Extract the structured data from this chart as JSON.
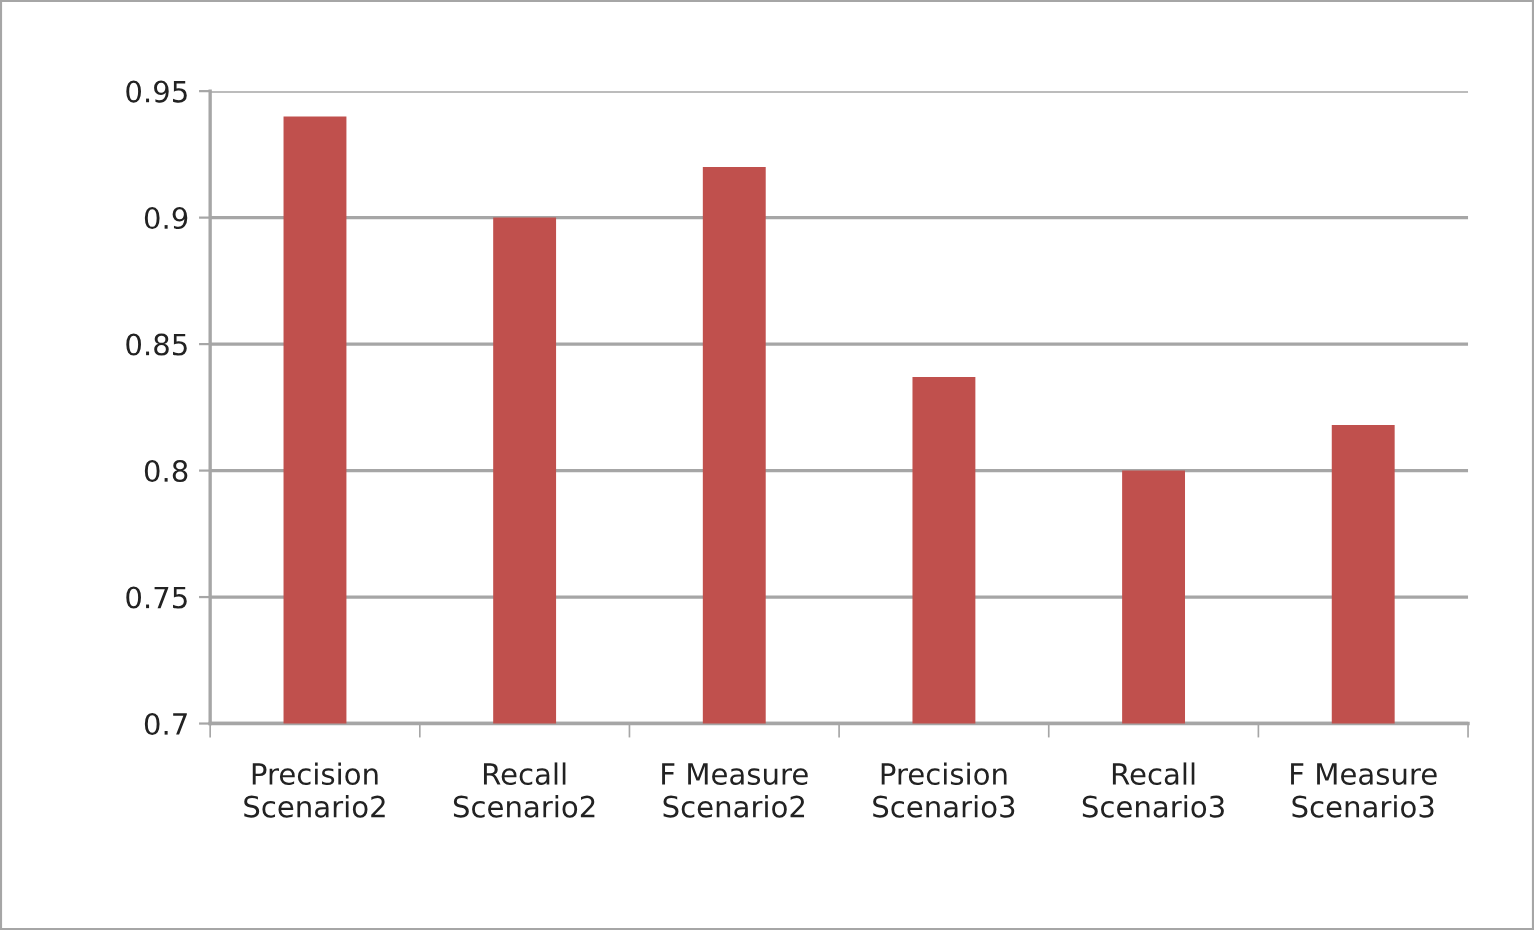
{
  "chart_data": {
    "type": "bar",
    "categories": [
      "Precision Scenario2",
      "Recall Scenario2",
      "F Measure Scenario2",
      "Precision Scenario3",
      "Recall Scenario3",
      "F Measure Scenario3"
    ],
    "values": [
      0.94,
      0.9,
      0.92,
      0.837,
      0.8,
      0.818
    ],
    "color": "#c0504d",
    "ylim": [
      0.7,
      0.95
    ],
    "yticks": [
      0.7,
      0.75,
      0.8,
      0.85,
      0.9,
      0.95
    ],
    "grid": "y",
    "legend": false
  }
}
